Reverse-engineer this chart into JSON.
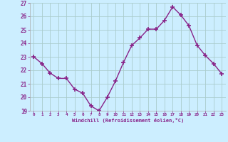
{
  "x": [
    0,
    1,
    2,
    3,
    4,
    5,
    6,
    7,
    8,
    9,
    10,
    11,
    12,
    13,
    14,
    15,
    16,
    17,
    18,
    19,
    20,
    21,
    22,
    23
  ],
  "y": [
    23.0,
    22.5,
    21.8,
    21.4,
    21.4,
    20.6,
    20.3,
    19.35,
    19.0,
    20.0,
    21.2,
    22.6,
    23.85,
    24.4,
    25.05,
    25.05,
    25.7,
    26.7,
    26.1,
    25.3,
    23.85,
    23.1,
    22.5,
    21.75
  ],
  "line_color": "#882288",
  "marker": "+",
  "markersize": 4,
  "markeredgewidth": 1.2,
  "linewidth": 1.0,
  "xlabel": "Windchill (Refroidissement éolien,°C)",
  "xlabel_color": "#882288",
  "bg_color": "#cceeff",
  "plot_bg_color": "#cceeff",
  "grid_color": "#aacccc",
  "tick_color": "#882288",
  "spine_color": "#aaaaaa",
  "ylim": [
    19,
    27
  ],
  "xlim": [
    -0.5,
    23.5
  ],
  "yticks": [
    19,
    20,
    21,
    22,
    23,
    24,
    25,
    26,
    27
  ],
  "xticks": [
    0,
    1,
    2,
    3,
    4,
    5,
    6,
    7,
    8,
    9,
    10,
    11,
    12,
    13,
    14,
    15,
    16,
    17,
    18,
    19,
    20,
    21,
    22,
    23
  ],
  "xtick_labels": [
    "0",
    "1",
    "2",
    "3",
    "4",
    "5",
    "6",
    "7",
    "8",
    "9",
    "10",
    "11",
    "12",
    "13",
    "14",
    "15",
    "16",
    "17",
    "18",
    "19",
    "20",
    "21",
    "22",
    "23"
  ],
  "ytick_labels": [
    "19",
    "20",
    "21",
    "22",
    "23",
    "24",
    "25",
    "26",
    "27"
  ]
}
